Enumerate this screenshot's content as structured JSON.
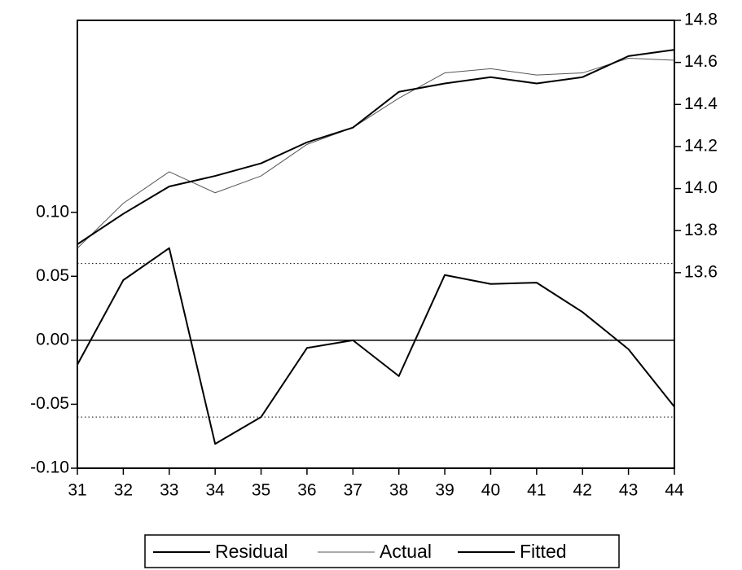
{
  "chart_data": {
    "type": "line",
    "x": [
      31,
      32,
      33,
      34,
      35,
      36,
      37,
      38,
      39,
      40,
      41,
      42,
      43,
      44
    ],
    "xlim": [
      31,
      44
    ],
    "xticks": [
      31,
      32,
      33,
      34,
      35,
      36,
      37,
      38,
      39,
      40,
      41,
      42,
      43,
      44
    ],
    "ylim": [
      -0.1,
      0.25
    ],
    "yticks": [
      {
        "value": -0.1,
        "label": "-0.10"
      },
      {
        "value": -0.05,
        "label": "-0.05"
      },
      {
        "value": 0,
        "label": "0.00"
      },
      {
        "value": 0.05,
        "label": "0.05"
      },
      {
        "value": 0.1,
        "label": "0.10"
      }
    ],
    "y2lim": [
      12.67,
      14.8
    ],
    "y2ticks": [
      13.6,
      13.8,
      {
        "value": 14.0,
        "label": "14.0"
      },
      14.2,
      14.4,
      14.6,
      14.8
    ],
    "hlines": [
      {
        "value": 0,
        "style": "solid"
      },
      {
        "value": 0.06,
        "style": "dotted"
      },
      {
        "value": -0.06,
        "style": "dotted"
      }
    ],
    "series": [
      {
        "name": "Residual",
        "color": "#000000",
        "width": 2,
        "values": [
          -0.019,
          0.047,
          0.072,
          -0.081,
          -0.06,
          -0.006,
          0.0,
          -0.028,
          0.051,
          0.044,
          0.045,
          0.022,
          -0.007,
          -0.052
        ]
      },
      {
        "name": "Actual",
        "color": "#555555",
        "width": 1,
        "axis": "y2",
        "values": [
          13.716,
          13.93,
          14.08,
          13.98,
          14.06,
          14.21,
          14.29,
          14.43,
          14.55,
          14.57,
          14.54,
          14.55,
          14.62,
          14.61
        ]
      },
      {
        "name": "Fitted",
        "color": "#000000",
        "width": 2,
        "axis": "y2",
        "values": [
          13.735,
          13.88,
          14.01,
          14.06,
          14.12,
          14.22,
          14.29,
          14.46,
          14.5,
          14.53,
          14.5,
          14.53,
          14.63,
          14.66
        ]
      }
    ]
  }
}
